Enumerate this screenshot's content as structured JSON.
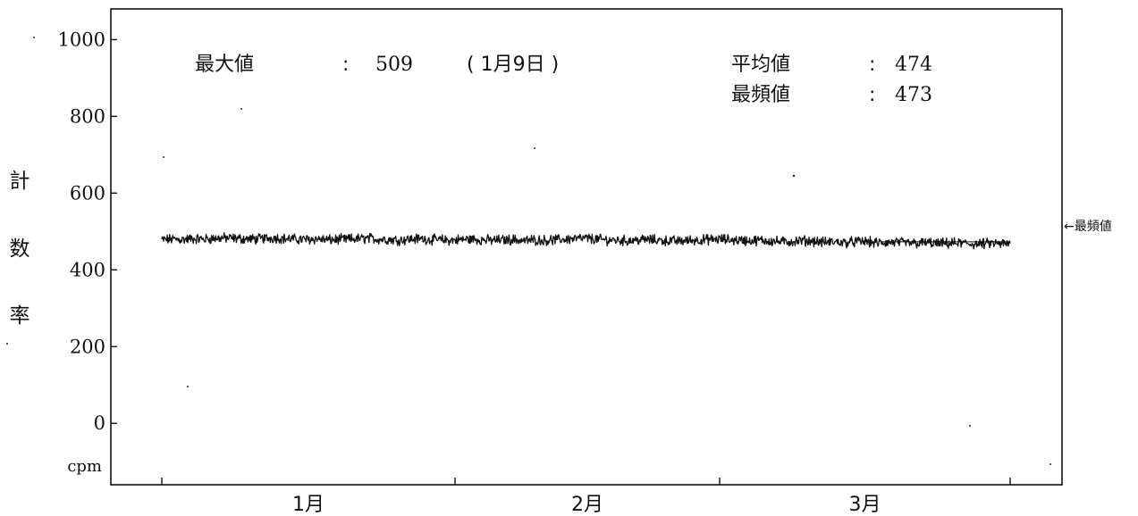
{
  "chart_data": {
    "type": "line",
    "ylabel": "計数率",
    "yunit": "cpm",
    "ylim": [
      -160,
      1080
    ],
    "yticks": [
      0,
      200,
      400,
      600,
      800,
      1000
    ],
    "xticks_labels": [
      "1月",
      "2月",
      "3月"
    ],
    "grid": false,
    "legend": "none",
    "series_color": "#111111",
    "series": [
      {
        "samples": [
          478,
          480,
          479,
          481,
          480,
          482,
          483,
          482,
          481,
          480,
          482,
          484,
          481,
          480,
          479,
          481,
          478,
          479,
          480,
          481,
          482,
          480,
          479,
          478,
          480,
          481,
          479,
          478,
          477,
          479,
          480,
          478,
          477,
          478,
          479,
          476,
          478,
          477,
          478,
          480,
          481,
          482,
          480,
          478,
          477,
          476,
          478,
          479,
          477,
          476,
          475,
          477,
          478,
          479,
          480,
          478,
          477,
          476,
          477,
          475,
          473,
          474,
          476,
          475,
          472,
          473,
          471,
          473,
          474,
          470,
          471,
          472,
          470,
          469,
          471,
          468,
          469,
          470,
          468,
          467,
          469,
          468,
          467
        ]
      }
    ],
    "annotations": {
      "max_label": "最大値",
      "max_sep": ":",
      "max_value": "509",
      "max_date": "( 1月9日 )",
      "mean_label": "平均値",
      "mean_sep": ":",
      "mean_value": "474",
      "mode_label": "最頻値",
      "mode_sep": ":",
      "mode_value": "473",
      "mode_value_number": 473,
      "mode_pointer": "←最頻値"
    }
  }
}
